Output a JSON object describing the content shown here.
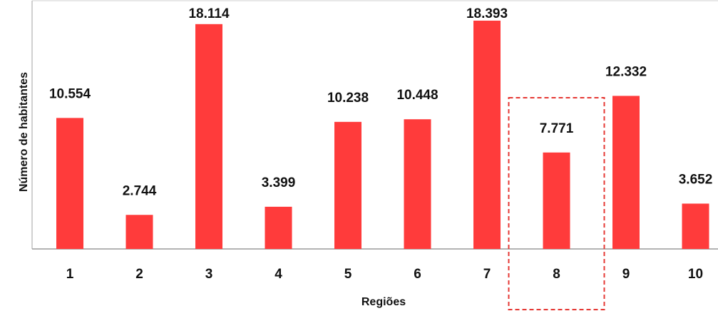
{
  "chart_data": {
    "type": "bar",
    "categories": [
      "1",
      "2",
      "3",
      "4",
      "5",
      "6",
      "7",
      "8",
      "9",
      "10"
    ],
    "values": [
      10554,
      2744,
      18114,
      3399,
      10238,
      10448,
      18393,
      7771,
      12332,
      3652
    ],
    "value_labels": [
      "10.554",
      "2.744",
      "18.114",
      "3.399",
      "10.238",
      "10.448",
      "18.393",
      "7.771",
      "12.332",
      "3.652"
    ],
    "title": "",
    "xlabel": "Regiões",
    "ylabel": "Número de habitantes",
    "ylim": [
      0,
      20000
    ],
    "grid": false,
    "bar_color": "#ff3b3b",
    "highlighted_category": "8",
    "highlight_color": "#e53935"
  }
}
